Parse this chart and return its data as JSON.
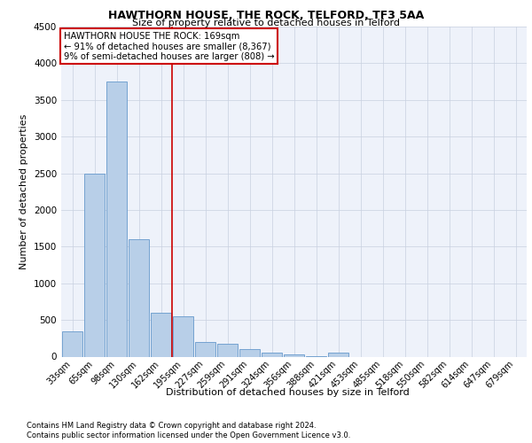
{
  "title1": "HAWTHORN HOUSE, THE ROCK, TELFORD, TF3 5AA",
  "title2": "Size of property relative to detached houses in Telford",
  "xlabel": "Distribution of detached houses by size in Telford",
  "ylabel": "Number of detached properties",
  "footnote1": "Contains HM Land Registry data © Crown copyright and database right 2024.",
  "footnote2": "Contains public sector information licensed under the Open Government Licence v3.0.",
  "annotation_line1": "HAWTHORN HOUSE THE ROCK: 169sqm",
  "annotation_line2": "← 91% of detached houses are smaller (8,367)",
  "annotation_line3": "9% of semi-detached houses are larger (808) →",
  "bar_color": "#b8cfe8",
  "bar_edge_color": "#6699cc",
  "redline_color": "#cc0000",
  "annotation_box_edge": "#cc0000",
  "categories": [
    "33sqm",
    "65sqm",
    "98sqm",
    "130sqm",
    "162sqm",
    "195sqm",
    "227sqm",
    "259sqm",
    "291sqm",
    "324sqm",
    "356sqm",
    "388sqm",
    "421sqm",
    "453sqm",
    "485sqm",
    "518sqm",
    "550sqm",
    "582sqm",
    "614sqm",
    "647sqm",
    "679sqm"
  ],
  "values": [
    350,
    2500,
    3750,
    1600,
    600,
    550,
    200,
    175,
    100,
    50,
    35,
    5,
    50,
    0,
    0,
    0,
    0,
    0,
    0,
    0,
    0
  ],
  "redline_x": 4.5,
  "ylim": [
    0,
    4500
  ],
  "yticks": [
    0,
    500,
    1000,
    1500,
    2000,
    2500,
    3000,
    3500,
    4000,
    4500
  ],
  "plot_background": "#eef2fa",
  "grid_color": "#c8d0e0",
  "title1_fontsize": 9,
  "title2_fontsize": 8,
  "ylabel_fontsize": 8,
  "xlabel_fontsize": 8,
  "tick_fontsize": 7,
  "footnote_fontsize": 6
}
